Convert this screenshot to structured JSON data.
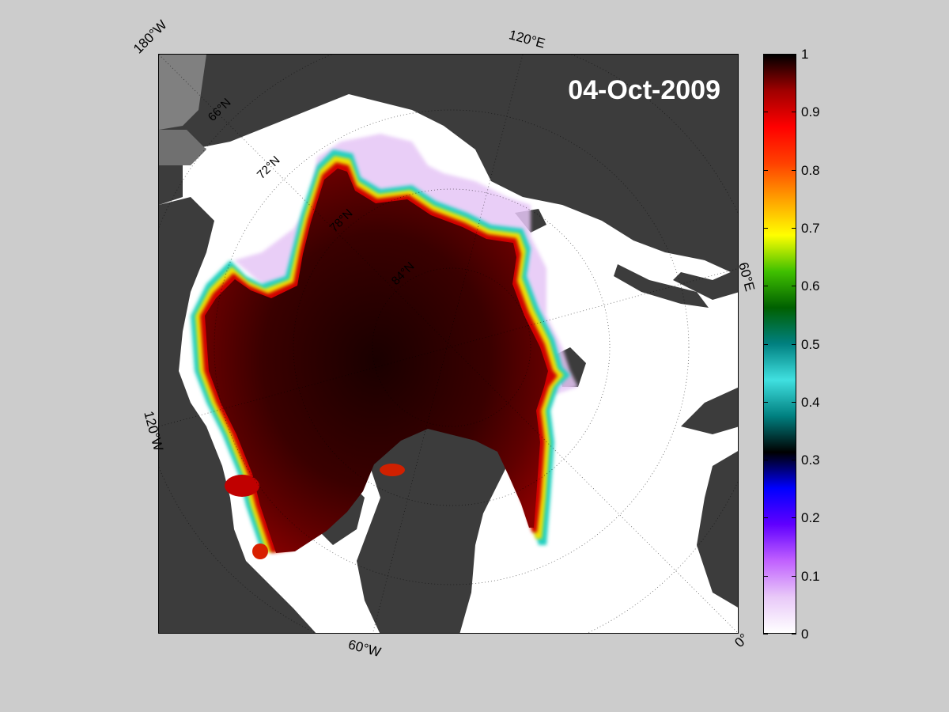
{
  "map": {
    "date": "04-Oct-2009",
    "longitude_labels": [
      "180°W",
      "120°E",
      "60°E",
      "0°",
      "60°W",
      "120°W"
    ],
    "latitude_labels": [
      "66°N",
      "72°N",
      "78°N",
      "84°N"
    ]
  },
  "colorbar": {
    "ticks": [
      "0",
      "0.1",
      "0.2",
      "0.3",
      "0.4",
      "0.5",
      "0.6",
      "0.7",
      "0.8",
      "0.9",
      "1"
    ],
    "stops": [
      "#ffffff",
      "#e8c8f8",
      "#c060ff",
      "#6000ff",
      "#0000ff",
      "#000000",
      "#008080",
      "#40e0e0",
      "#008080",
      "#006000",
      "#40c000",
      "#ffff00",
      "#ffa000",
      "#ff4000",
      "#ff0000",
      "#a00000",
      "#000000"
    ]
  },
  "colors": {
    "background": "#cccccc",
    "ocean": "#ffffff",
    "land": "#3c3c3c",
    "land_light": "#808080",
    "ice_core": "#2a0000",
    "ice_edge": "#d00000"
  }
}
